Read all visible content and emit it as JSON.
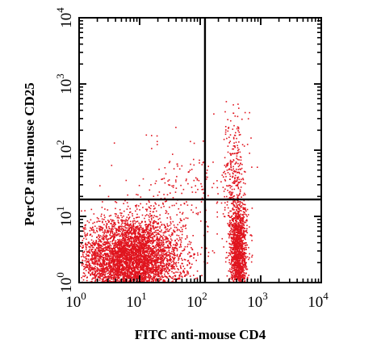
{
  "chart_data": {
    "type": "scatter",
    "title": "",
    "xlabel": "FITC anti-mouse CD4",
    "ylabel": "PerCP anti-mouse CD25",
    "x_scale": "log",
    "y_scale": "log",
    "xlim": [
      1,
      10000
    ],
    "ylim": [
      1,
      10000
    ],
    "x_ticks": [
      {
        "base": "10",
        "exp": "0",
        "value": 1
      },
      {
        "base": "10",
        "exp": "1",
        "value": 10
      },
      {
        "base": "10",
        "exp": "2",
        "value": 100
      },
      {
        "base": "10",
        "exp": "3",
        "value": 1000
      },
      {
        "base": "10",
        "exp": "4",
        "value": 10000
      }
    ],
    "y_ticks": [
      {
        "base": "10",
        "exp": "0",
        "value": 1
      },
      {
        "base": "10",
        "exp": "1",
        "value": 10
      },
      {
        "base": "10",
        "exp": "2",
        "value": 100
      },
      {
        "base": "10",
        "exp": "3",
        "value": 1000
      },
      {
        "base": "10",
        "exp": "4",
        "value": 10000
      }
    ],
    "quadrant_gates": {
      "x": 120,
      "y": 18
    },
    "grid": false,
    "point_color": "#e0141e",
    "populations": [
      {
        "x_log_center": 0.85,
        "y_log_center": 0.35,
        "x_log_spread": 0.42,
        "y_log_spread": 0.32,
        "count": 5200
      },
      {
        "x_log_center": 2.62,
        "y_log_center": 0.45,
        "x_log_spread": 0.07,
        "y_log_spread": 0.38,
        "count": 1500
      },
      {
        "x_log_center": 2.55,
        "y_log_center": 1.7,
        "x_log_spread": 0.09,
        "y_log_spread": 0.45,
        "count": 260
      },
      {
        "x_log_center": 1.8,
        "y_log_center": 1.45,
        "x_log_spread": 0.45,
        "y_log_spread": 0.35,
        "count": 180
      }
    ]
  }
}
